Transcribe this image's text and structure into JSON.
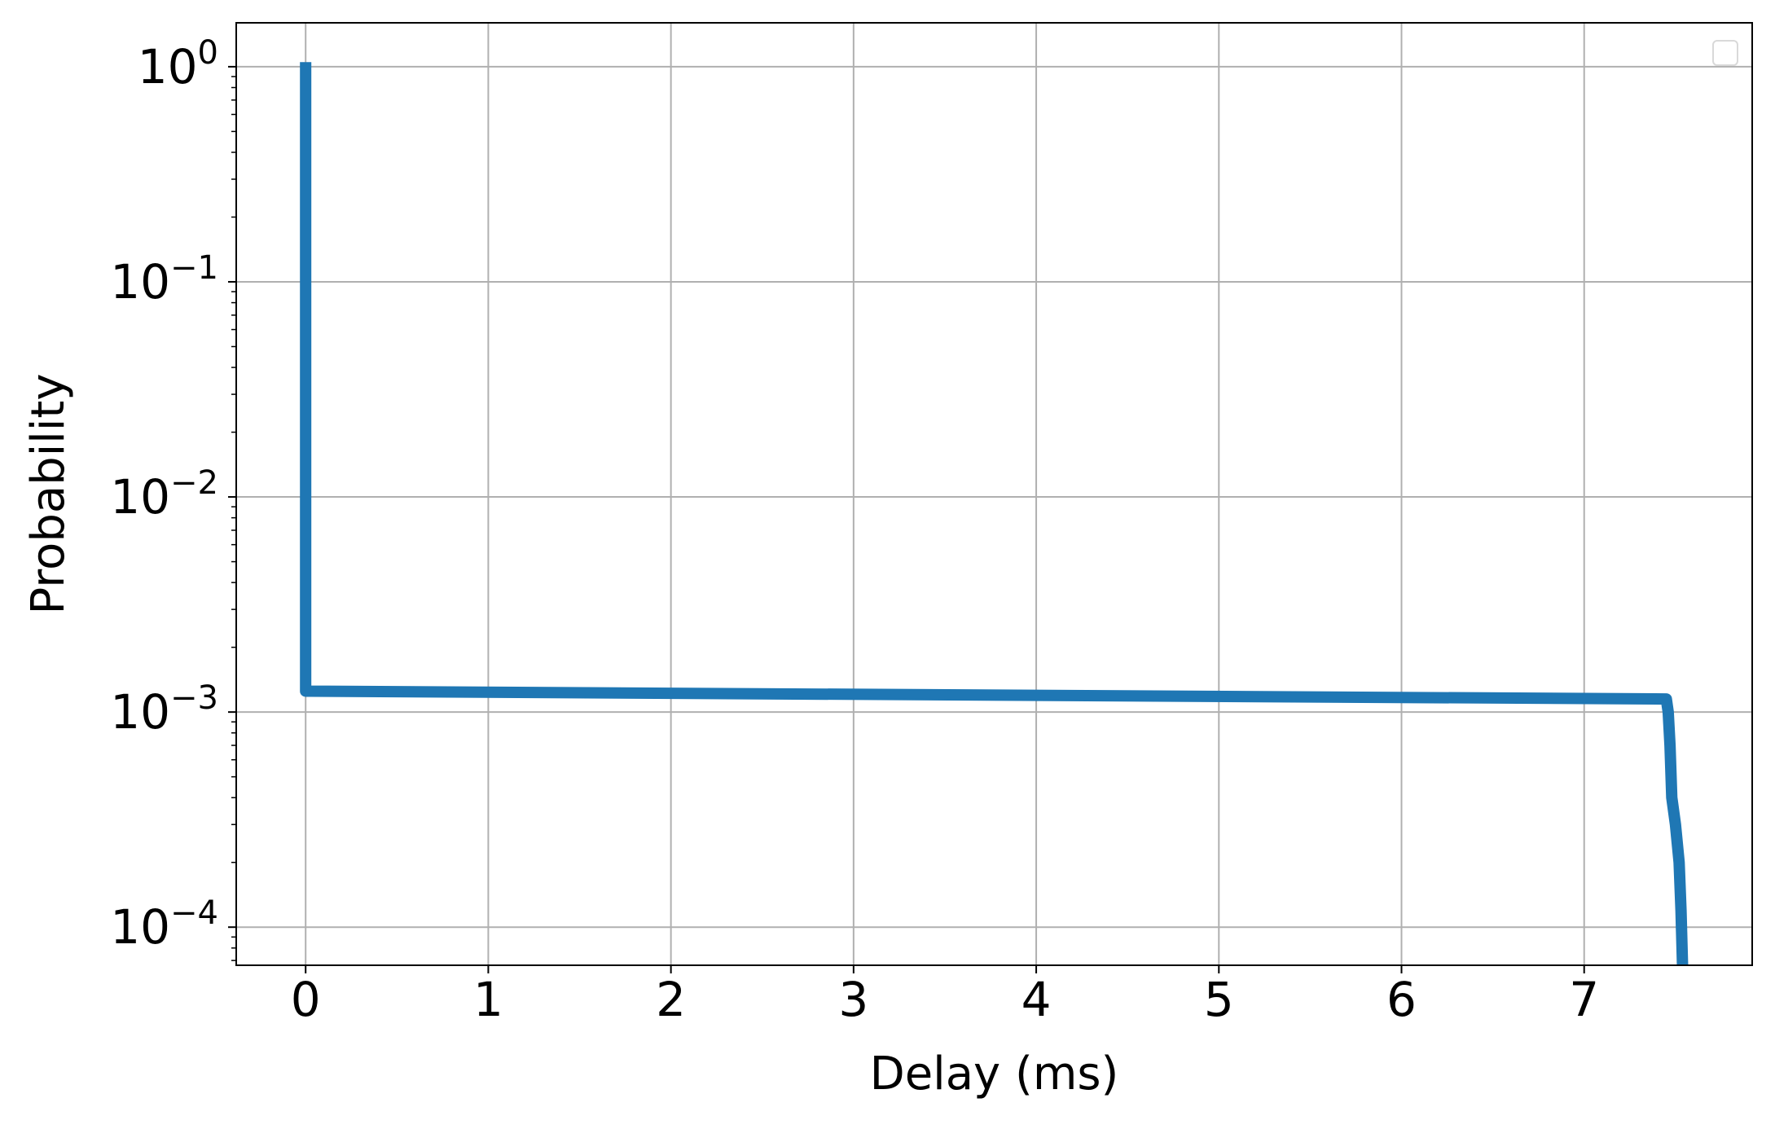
{
  "chart_data": {
    "type": "line",
    "title": "",
    "xlabel": "Delay (ms)",
    "ylabel": "Probability",
    "xlim": [
      -0.38,
      7.92
    ],
    "ylim": [
      6.65e-05,
      1.6
    ],
    "yscale": "log",
    "grid": true,
    "legend": "upper right, empty",
    "x_ticks": [
      0,
      1,
      2,
      3,
      4,
      5,
      6,
      7
    ],
    "x_tick_labels": [
      "0",
      "1",
      "2",
      "3",
      "4",
      "5",
      "6",
      "7"
    ],
    "y_ticks": [
      1,
      0.1,
      0.01,
      0.001,
      0.0001
    ],
    "y_tick_labels": [
      {
        "base": "10",
        "exp": "0"
      },
      {
        "base": "10",
        "exp": "−1"
      },
      {
        "base": "10",
        "exp": "−2"
      },
      {
        "base": "10",
        "exp": "−3"
      },
      {
        "base": "10",
        "exp": "−4"
      }
    ],
    "colors": {
      "series": "#1f77b4",
      "grid": "#b0b0b0",
      "axes": "#000000"
    },
    "series": [
      {
        "x": [
          0,
          0,
          7.45,
          7.46,
          7.47,
          7.48,
          7.5,
          7.52,
          7.53,
          7.54
        ],
        "y": [
          1.05,
          0.00125,
          0.00115,
          0.001,
          0.0007,
          0.0004,
          0.0003,
          0.0002,
          0.00012,
          6e-05
        ]
      }
    ]
  }
}
